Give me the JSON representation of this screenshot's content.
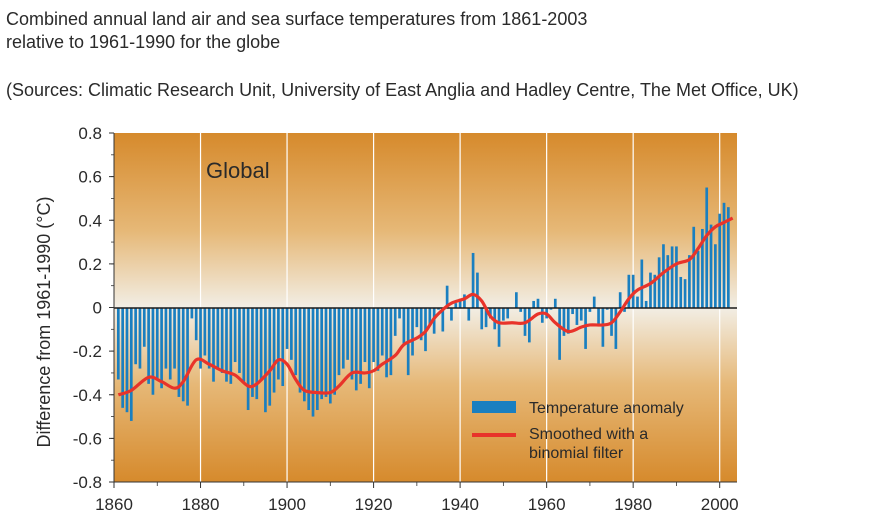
{
  "header": {
    "title_line1": "Combined annual land air and sea surface temperatures from 1861-2003",
    "title_line2": "relative to 1961-1990 for the globe",
    "sources": "(Sources: Climatic Research Unit, University of East Anglia and Hadley Centre, The Met Office, UK)"
  },
  "chart_data": {
    "type": "bar",
    "title": "Combined annual land air and sea surface temperatures from 1861-2003 relative to 1961-1990 for the globe",
    "panel_label": "Global",
    "xlabel": "",
    "ylabel": "Difference from 1961-1990 (°C)",
    "xlim": [
      1860,
      2004
    ],
    "ylim": [
      -0.8,
      0.8
    ],
    "x_ticks": [
      "1860",
      "1880",
      "1900",
      "1920",
      "1940",
      "1960",
      "1980",
      "2000"
    ],
    "y_ticks": [
      "0.8",
      "0.6",
      "0.4",
      "0.2",
      "0",
      "-0.2",
      "-0.4",
      "-0.6",
      "-0.8"
    ],
    "grid": "vertical lines every 20 years",
    "legend_position": "bottom-right",
    "legend": [
      "Temperature anomaly",
      "Smoothed with a binomial filter"
    ],
    "colors": {
      "bars": "#1a7fc0",
      "smooth": "#e8332a",
      "background_edge": "#d88a2e",
      "background_center": "#f1efe6"
    },
    "years_start": 1861,
    "series": [
      {
        "name": "Temperature anomaly",
        "values": [
          -0.33,
          -0.46,
          -0.48,
          -0.52,
          -0.26,
          -0.28,
          -0.18,
          -0.35,
          -0.4,
          -0.33,
          -0.37,
          -0.28,
          -0.33,
          -0.28,
          -0.41,
          -0.43,
          -0.45,
          -0.05,
          -0.15,
          -0.28,
          -0.22,
          -0.28,
          -0.34,
          -0.28,
          -0.3,
          -0.34,
          -0.35,
          -0.25,
          -0.3,
          -0.34,
          -0.47,
          -0.41,
          -0.42,
          -0.33,
          -0.48,
          -0.45,
          -0.39,
          -0.33,
          -0.36,
          -0.19,
          -0.24,
          -0.31,
          -0.39,
          -0.43,
          -0.47,
          -0.5,
          -0.47,
          -0.42,
          -0.41,
          -0.44,
          -0.4,
          -0.31,
          -0.28,
          -0.24,
          -0.33,
          -0.38,
          -0.35,
          -0.25,
          -0.37,
          -0.25,
          -0.29,
          -0.22,
          -0.32,
          -0.31,
          -0.13,
          -0.05,
          -0.17,
          -0.31,
          -0.22,
          -0.09,
          -0.15,
          -0.2,
          -0.08,
          -0.12,
          -0.01,
          -0.11,
          0.1,
          -0.06,
          0.02,
          0.04,
          0.06,
          -0.06,
          0.25,
          0.16,
          -0.1,
          -0.09,
          -0.05,
          -0.1,
          -0.18,
          -0.06,
          -0.05,
          0.0,
          0.07,
          -0.02,
          -0.13,
          -0.16,
          0.03,
          0.04,
          -0.07,
          -0.05,
          -0.01,
          0.04,
          -0.24,
          -0.13,
          -0.12,
          -0.03,
          -0.08,
          -0.06,
          -0.19,
          -0.02,
          0.05,
          -0.08,
          -0.18,
          -0.01,
          -0.13,
          -0.19,
          0.07,
          -0.02,
          0.15,
          0.15,
          0.05,
          0.22,
          0.03,
          0.16,
          0.15,
          0.23,
          0.29,
          0.24,
          0.28,
          0.28,
          0.14,
          0.13,
          0.24,
          0.37,
          0.26,
          0.36,
          0.55,
          0.38,
          0.29,
          0.43,
          0.48,
          0.46
        ]
      },
      {
        "name": "Smoothed with a binomial filter",
        "points": [
          [
            1861,
            -0.4
          ],
          [
            1864,
            -0.38
          ],
          [
            1868,
            -0.32
          ],
          [
            1871,
            -0.34
          ],
          [
            1874,
            -0.37
          ],
          [
            1876,
            -0.34
          ],
          [
            1879,
            -0.24
          ],
          [
            1882,
            -0.26
          ],
          [
            1885,
            -0.29
          ],
          [
            1888,
            -0.31
          ],
          [
            1891,
            -0.36
          ],
          [
            1893,
            -0.35
          ],
          [
            1896,
            -0.29
          ],
          [
            1898,
            -0.24
          ],
          [
            1900,
            -0.26
          ],
          [
            1902,
            -0.33
          ],
          [
            1904,
            -0.38
          ],
          [
            1907,
            -0.39
          ],
          [
            1910,
            -0.39
          ],
          [
            1912,
            -0.36
          ],
          [
            1915,
            -0.3
          ],
          [
            1918,
            -0.3
          ],
          [
            1920,
            -0.29
          ],
          [
            1922,
            -0.26
          ],
          [
            1925,
            -0.22
          ],
          [
            1927,
            -0.17
          ],
          [
            1930,
            -0.14
          ],
          [
            1932,
            -0.11
          ],
          [
            1934,
            -0.05
          ],
          [
            1936,
            -0.01
          ],
          [
            1938,
            0.02
          ],
          [
            1941,
            0.04
          ],
          [
            1943,
            0.06
          ],
          [
            1945,
            0.03
          ],
          [
            1947,
            -0.04
          ],
          [
            1949,
            -0.07
          ],
          [
            1952,
            -0.07
          ],
          [
            1955,
            -0.07
          ],
          [
            1958,
            -0.03
          ],
          [
            1960,
            -0.03
          ],
          [
            1962,
            -0.07
          ],
          [
            1965,
            -0.11
          ],
          [
            1968,
            -0.09
          ],
          [
            1970,
            -0.08
          ],
          [
            1973,
            -0.08
          ],
          [
            1975,
            -0.07
          ],
          [
            1977,
            -0.02
          ],
          [
            1979,
            0.04
          ],
          [
            1981,
            0.08
          ],
          [
            1984,
            0.11
          ],
          [
            1987,
            0.16
          ],
          [
            1990,
            0.2
          ],
          [
            1993,
            0.22
          ],
          [
            1995,
            0.27
          ],
          [
            1997,
            0.33
          ],
          [
            1999,
            0.37
          ],
          [
            2001,
            0.39
          ],
          [
            2003,
            0.41
          ]
        ]
      }
    ]
  }
}
